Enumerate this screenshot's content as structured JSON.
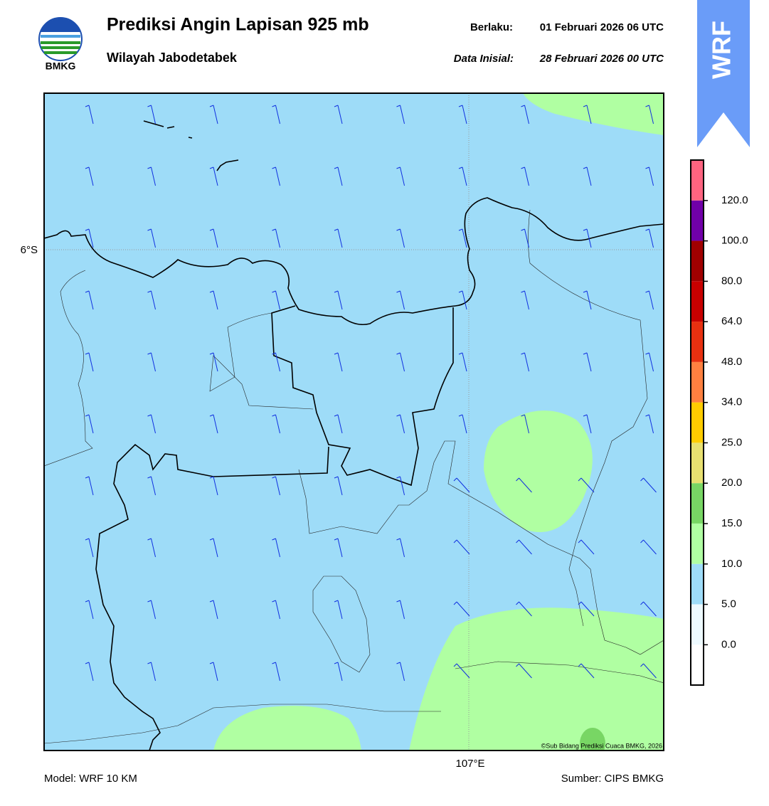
{
  "header": {
    "title": "Prediksi Angin Lapisan 925 mb",
    "subtitle": "Wilayah Jabodetabek",
    "valid_label": "Berlaku:",
    "valid_time": "01 Februari 2026 06 UTC",
    "init_label": "Data Inisial:",
    "init_time": "28 Februari 2026 00 UTC",
    "logo_text": "BMKG",
    "badge": "WRF"
  },
  "map": {
    "lat_label": "6°S",
    "lon_label": "107°E",
    "copyright": "©Sub Bidang Prediksi Cuaca BMKG, 2026"
  },
  "colorbar": {
    "ticks": [
      {
        "value": 0,
        "label": "0.0"
      },
      {
        "value": 5,
        "label": "5.0"
      },
      {
        "value": 10,
        "label": "10.0"
      },
      {
        "value": 15,
        "label": "15.0"
      },
      {
        "value": 20,
        "label": "20.0"
      },
      {
        "value": 25,
        "label": "25.0"
      },
      {
        "value": 34,
        "label": "34.0"
      },
      {
        "value": 48,
        "label": "48.0"
      },
      {
        "value": 64,
        "label": "64.0"
      },
      {
        "value": 80,
        "label": "80.0"
      },
      {
        "value": 100,
        "label": "100.0"
      },
      {
        "value": 120,
        "label": "120.0"
      }
    ],
    "colors": [
      "#ffffff",
      "#eefaff",
      "#9edcf8",
      "#b0ffa2",
      "#78d664",
      "#e8e070",
      "#ffcc00",
      "#ff8040",
      "#e83010",
      "#c80000",
      "#a00000",
      "#7000a8",
      "#ff6480"
    ]
  },
  "footer": {
    "model": "Model: WRF 10 KM",
    "source": "Sumber: CIPS BMKG"
  }
}
